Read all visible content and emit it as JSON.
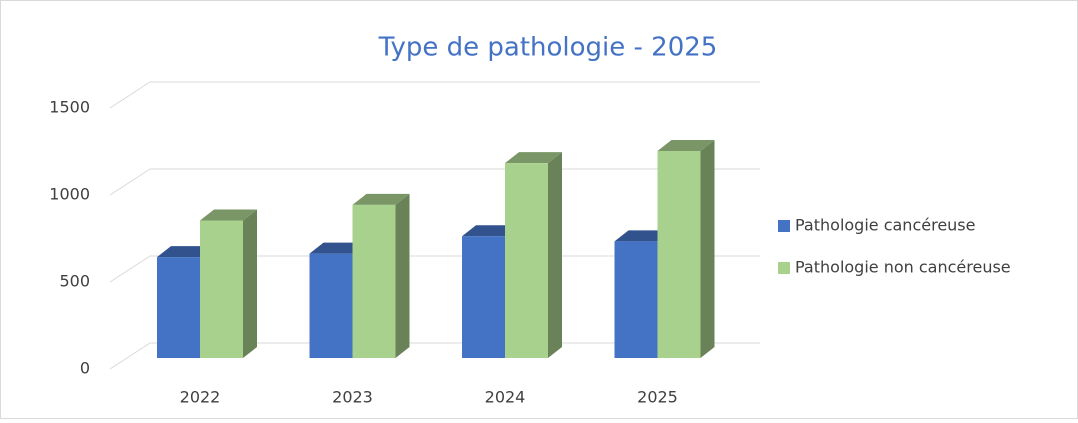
{
  "chart_data": {
    "type": "bar3d",
    "title": "Type de pathologie - 2025",
    "categories": [
      "2022",
      "2023",
      "2024",
      "2025"
    ],
    "series": [
      {
        "name": "Pathologie cancéreuse",
        "color": "#4472c4",
        "values": [
          580,
          600,
          700,
          670
        ]
      },
      {
        "name": "Pathologie non cancéreuse",
        "color": "#a9d18e",
        "values": [
          790,
          880,
          1120,
          1190
        ]
      }
    ],
    "ylim": [
      0,
      1500
    ],
    "yticks": [
      0,
      500,
      1000,
      1500
    ],
    "grid": true,
    "legend": "right"
  }
}
